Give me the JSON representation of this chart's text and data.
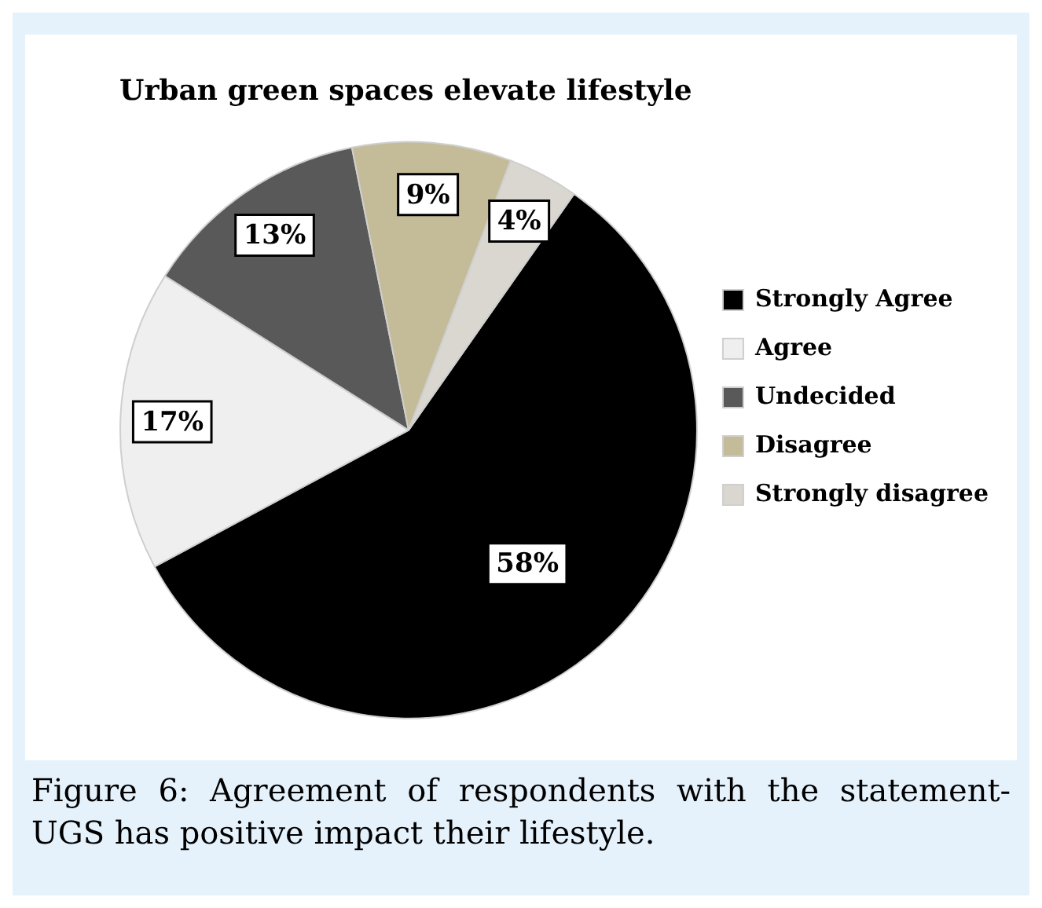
{
  "chart_data": {
    "type": "pie",
    "title": "Urban green spaces elevate lifestyle",
    "categories": [
      "Strongly Agree",
      "Agree",
      "Undecided",
      "Disagree",
      "Strongly disagree"
    ],
    "values": [
      58,
      17,
      13,
      9,
      4
    ],
    "colors": [
      "#000000",
      "#efefef",
      "#595959",
      "#c4bc98",
      "#d9d7cf"
    ],
    "value_labels": [
      "58%",
      "17%",
      "13%",
      "9%",
      "4%"
    ],
    "legend": "right",
    "annotations": [
      "Figure 6: Agreement of respondents with the statement- UGS has positive impact their lifestyle."
    ]
  }
}
